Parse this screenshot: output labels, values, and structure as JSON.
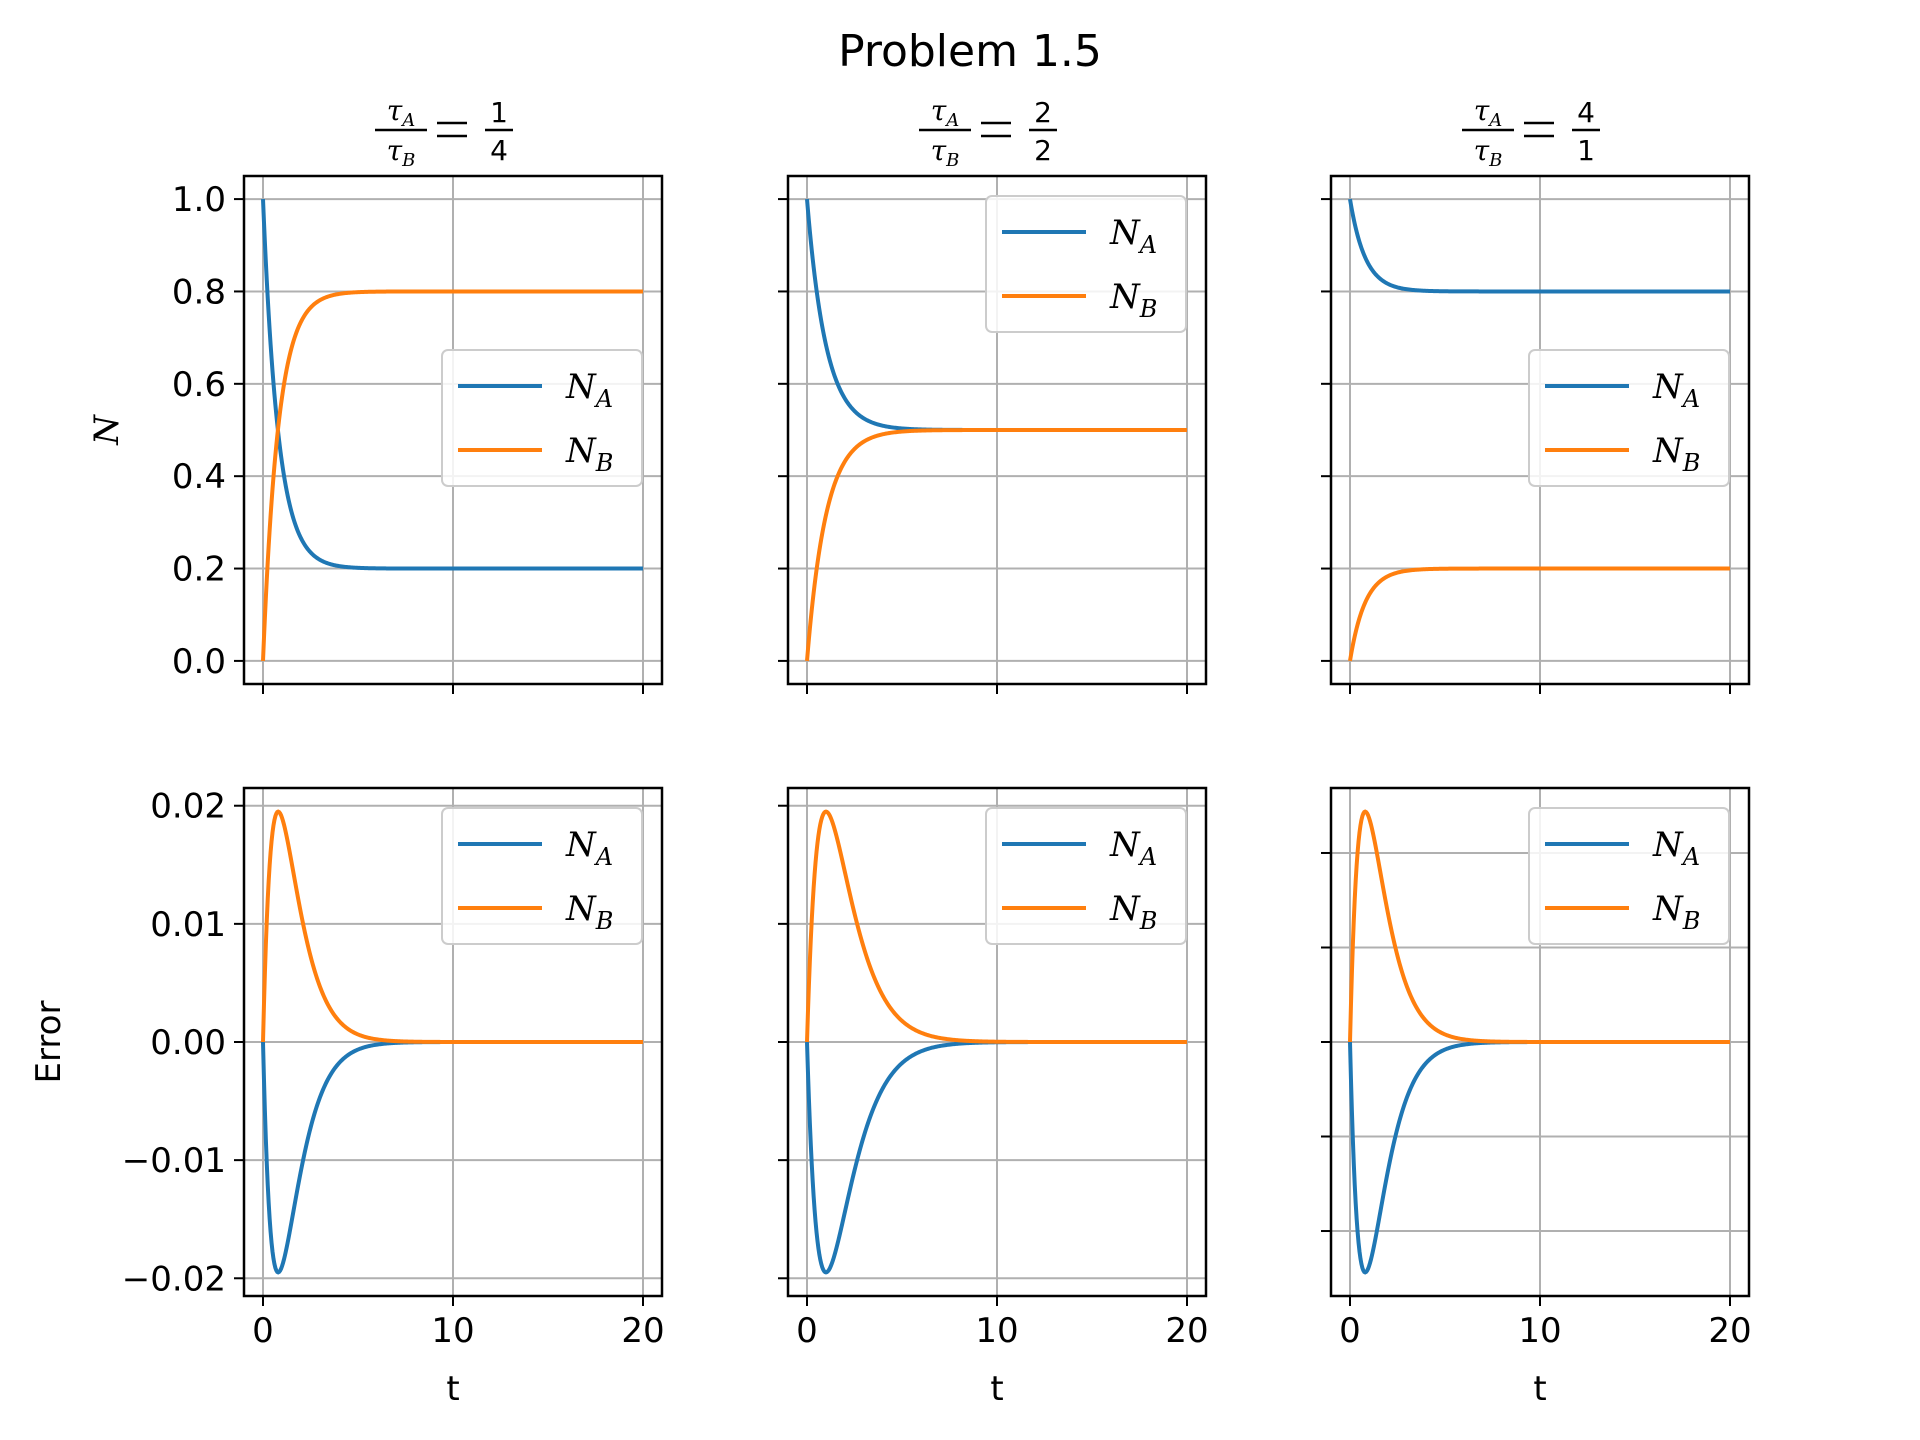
{
  "figure": {
    "suptitle": "Problem 1.5"
  },
  "chart_data": [
    {
      "type": "line",
      "panel": "top-left",
      "title": {
        "num": "τ",
        "num_sub": "A",
        "den": "τ",
        "den_sub": "B",
        "frac_num": "1",
        "frac_den": "4"
      },
      "xlabel": "",
      "ylabel": "N",
      "xlim": [
        -1,
        21
      ],
      "ylim": [
        -0.05,
        1.05
      ],
      "xticks": [
        0,
        10,
        20
      ],
      "xticklabels": [],
      "yticks": [
        0.0,
        0.2,
        0.4,
        0.6,
        0.8,
        1.0
      ],
      "yticklabels": [
        "0.0",
        "0.2",
        "0.4",
        "0.6",
        "0.8",
        "1.0"
      ],
      "grid": true,
      "legend": "center-right",
      "series": [
        {
          "name": "N_A",
          "color": "#1f77b4",
          "kind": "relax",
          "start": 1.0,
          "end": 0.2,
          "tau": 0.8
        },
        {
          "name": "N_B",
          "color": "#ff7f0e",
          "kind": "relax",
          "start": 0.0,
          "end": 0.8,
          "tau": 0.8
        }
      ]
    },
    {
      "type": "line",
      "panel": "top-middle",
      "title": {
        "num": "τ",
        "num_sub": "A",
        "den": "τ",
        "den_sub": "B",
        "frac_num": "2",
        "frac_den": "2"
      },
      "xlabel": "",
      "ylabel": "",
      "xlim": [
        -1,
        21
      ],
      "ylim": [
        -0.05,
        1.05
      ],
      "xticks": [
        0,
        10,
        20
      ],
      "xticklabels": [],
      "yticks": [
        0.0,
        0.2,
        0.4,
        0.6,
        0.8,
        1.0
      ],
      "yticklabels": [],
      "grid": true,
      "legend": "top-right",
      "series": [
        {
          "name": "N_A",
          "color": "#1f77b4",
          "kind": "relax",
          "start": 1.0,
          "end": 0.5,
          "tau": 1.0
        },
        {
          "name": "N_B",
          "color": "#ff7f0e",
          "kind": "relax",
          "start": 0.0,
          "end": 0.5,
          "tau": 1.0
        }
      ]
    },
    {
      "type": "line",
      "panel": "top-right",
      "title": {
        "num": "τ",
        "num_sub": "A",
        "den": "τ",
        "den_sub": "B",
        "frac_num": "4",
        "frac_den": "1"
      },
      "xlabel": "",
      "ylabel": "",
      "xlim": [
        -1,
        21
      ],
      "ylim": [
        -0.05,
        1.05
      ],
      "xticks": [
        0,
        10,
        20
      ],
      "xticklabels": [],
      "yticks": [
        0.0,
        0.2,
        0.4,
        0.6,
        0.8,
        1.0
      ],
      "yticklabels": [],
      "grid": true,
      "legend": "center-right",
      "series": [
        {
          "name": "N_A",
          "color": "#1f77b4",
          "kind": "relax",
          "start": 1.0,
          "end": 0.8,
          "tau": 0.8
        },
        {
          "name": "N_B",
          "color": "#ff7f0e",
          "kind": "relax",
          "start": 0.0,
          "end": 0.2,
          "tau": 0.8
        }
      ]
    },
    {
      "type": "line",
      "panel": "bottom-left",
      "xlabel": "t",
      "ylabel": "Error",
      "xlim": [
        -1,
        21
      ],
      "ylim": [
        -0.0215,
        0.0215
      ],
      "xticks": [
        0,
        10,
        20
      ],
      "xticklabels": [
        "0",
        "10",
        "20"
      ],
      "yticks": [
        -0.02,
        -0.01,
        0.0,
        0.01,
        0.02
      ],
      "yticklabels": [
        "−0.02",
        "−0.01",
        "0.00",
        "0.01",
        "0.02"
      ],
      "grid": true,
      "legend": "top-right",
      "series": [
        {
          "name": "N_A",
          "color": "#1f77b4",
          "kind": "pulse",
          "peak": -0.0195,
          "tpeak": 0.8
        },
        {
          "name": "N_B",
          "color": "#ff7f0e",
          "kind": "pulse",
          "peak": 0.0195,
          "tpeak": 0.8
        }
      ]
    },
    {
      "type": "line",
      "panel": "bottom-middle",
      "xlabel": "t",
      "ylabel": "",
      "xlim": [
        -1,
        21
      ],
      "ylim": [
        -0.0215,
        0.0215
      ],
      "xticks": [
        0,
        10,
        20
      ],
      "xticklabels": [
        "0",
        "10",
        "20"
      ],
      "yticks": [
        -0.02,
        -0.01,
        0.0,
        0.01,
        0.02
      ],
      "yticklabels": [],
      "grid": true,
      "legend": "top-right",
      "series": [
        {
          "name": "N_A",
          "color": "#1f77b4",
          "kind": "pulse",
          "peak": -0.0195,
          "tpeak": 1.0
        },
        {
          "name": "N_B",
          "color": "#ff7f0e",
          "kind": "pulse",
          "peak": 0.0195,
          "tpeak": 1.0
        }
      ]
    },
    {
      "type": "line",
      "panel": "bottom-right",
      "xlabel": "t",
      "ylabel": "",
      "xlim": [
        -1,
        21
      ],
      "ylim": [
        -0.0215,
        0.0215
      ],
      "xticks": [
        0,
        10,
        20
      ],
      "xticklabels": [
        "0",
        "10",
        "20"
      ],
      "yticks": [
        -0.016,
        -0.008,
        0.0,
        0.008,
        0.016
      ],
      "yticklabels": [],
      "yticks_minor": [
        -0.012,
        -0.004,
        0.004,
        0.012
      ],
      "grid": true,
      "legend": "top-right",
      "series": [
        {
          "name": "N_A",
          "color": "#1f77b4",
          "kind": "pulse",
          "peak": -0.0195,
          "tpeak": 0.8
        },
        {
          "name": "N_B",
          "color": "#ff7f0e",
          "kind": "pulse",
          "peak": 0.0195,
          "tpeak": 0.8
        }
      ]
    }
  ]
}
